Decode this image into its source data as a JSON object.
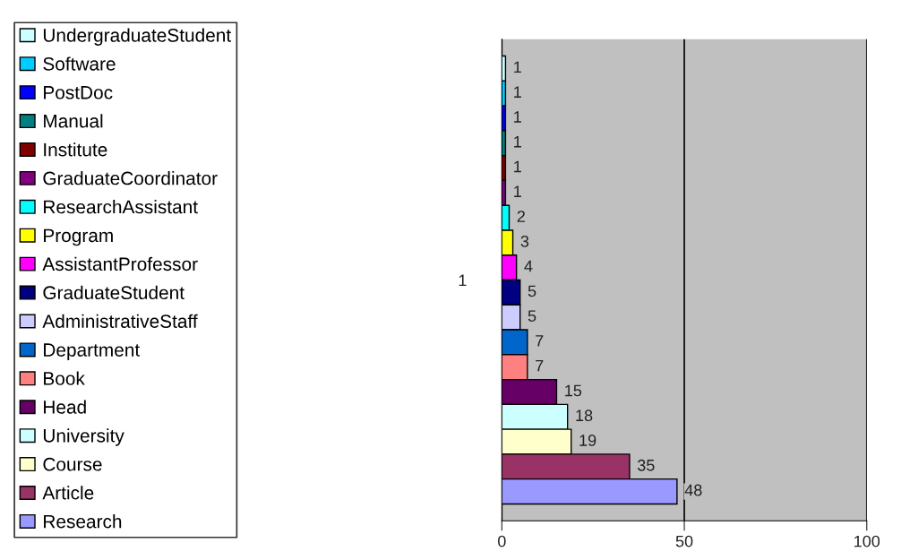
{
  "chart_data": {
    "type": "bar",
    "orientation": "horizontal",
    "categories": [
      "1"
    ],
    "series": [
      {
        "name": "UndergraduateStudent",
        "color": "#ccffff",
        "values": [
          1
        ]
      },
      {
        "name": "Software",
        "color": "#00ccff",
        "values": [
          1
        ]
      },
      {
        "name": "PostDoc",
        "color": "#0000ff",
        "values": [
          1
        ]
      },
      {
        "name": "Manual",
        "color": "#008080",
        "values": [
          1
        ]
      },
      {
        "name": "Institute",
        "color": "#800000",
        "values": [
          1
        ]
      },
      {
        "name": "GraduateCoordinator",
        "color": "#800080",
        "values": [
          1
        ]
      },
      {
        "name": "ResearchAssistant",
        "color": "#00ffff",
        "values": [
          2
        ]
      },
      {
        "name": "Program",
        "color": "#ffff00",
        "values": [
          3
        ]
      },
      {
        "name": "AssistantProfessor",
        "color": "#ff00ff",
        "values": [
          4
        ]
      },
      {
        "name": "GraduateStudent",
        "color": "#000080",
        "values": [
          5
        ]
      },
      {
        "name": "AdministrativeStaff",
        "color": "#ccccff",
        "values": [
          5
        ]
      },
      {
        "name": "Department",
        "color": "#0066cc",
        "values": [
          7
        ]
      },
      {
        "name": "Book",
        "color": "#ff8080",
        "values": [
          7
        ]
      },
      {
        "name": "Head",
        "color": "#660066",
        "values": [
          15
        ]
      },
      {
        "name": "University",
        "color": "#ccffff",
        "values": [
          18
        ]
      },
      {
        "name": "Course",
        "color": "#ffffcc",
        "values": [
          19
        ]
      },
      {
        "name": "Article",
        "color": "#993366",
        "values": [
          35
        ]
      },
      {
        "name": "Research",
        "color": "#9999ff",
        "values": [
          48
        ]
      }
    ],
    "xlim": [
      0,
      100
    ],
    "xticks": [
      0,
      50,
      100
    ],
    "grid": "x",
    "legend": "left",
    "data_labels": true
  }
}
